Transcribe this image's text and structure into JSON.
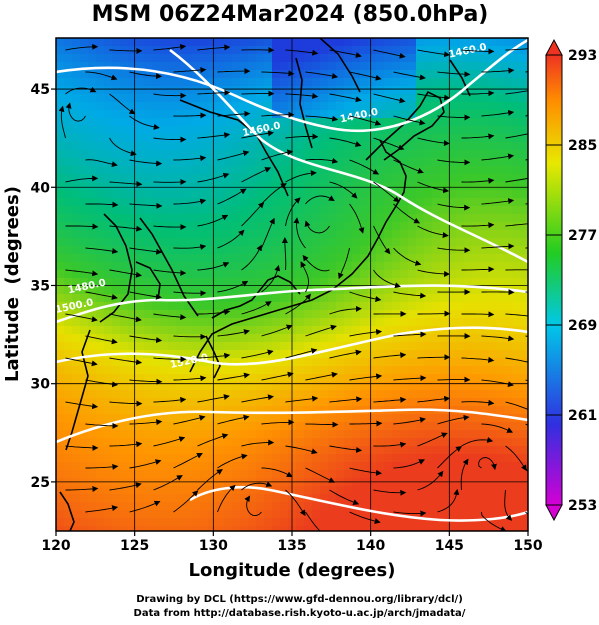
{
  "title": "MSM 06Z24Mar2024 (850.0hPa)",
  "axes": {
    "xlabel": "Longitude (degrees)",
    "ylabel": "Latitude  (degrees)",
    "x_range": [
      120,
      150
    ],
    "y_range": [
      22.5,
      47.6
    ],
    "x_ticks": [
      "120",
      "125",
      "130",
      "135",
      "140",
      "145",
      "150"
    ],
    "y_ticks": [
      "25",
      "30",
      "35",
      "40",
      "45"
    ],
    "x_tick_values": [
      120,
      125,
      130,
      135,
      140,
      145,
      150
    ],
    "y_tick_values": [
      25,
      30,
      35,
      40,
      45
    ]
  },
  "colorbar": {
    "labels": [
      "293",
      "285",
      "277",
      "269",
      "261",
      "253"
    ],
    "values": [
      293,
      285,
      277,
      269,
      261,
      253
    ],
    "min": 253,
    "max": 293,
    "colors": [
      "#d400d4",
      "#3030e0",
      "#00c8e8",
      "#22cc22",
      "#e8e800",
      "#ff8c00",
      "#ee3322"
    ]
  },
  "contours": {
    "color": "#ffffff",
    "labels": [
      {
        "text": "1460.0",
        "lon": 146.2,
        "lat": 46.8
      },
      {
        "text": "1440.0",
        "lon": 139.3,
        "lat": 43.5
      },
      {
        "text": "1460.0",
        "lon": 133.1,
        "lat": 42.8
      },
      {
        "text": "1480.0",
        "lon": 122.0,
        "lat": 34.8
      },
      {
        "text": "1500.0",
        "lon": 121.2,
        "lat": 33.8
      },
      {
        "text": "1520.0",
        "lon": 128.5,
        "lat": 31.0
      }
    ]
  },
  "credits": [
    "Drawing by DCL (https://www.gfd-dennou.org/library/dcl/)",
    "Data from http://database.rish.kyoto-u.ac.jp/arch/jmadata/"
  ]
}
